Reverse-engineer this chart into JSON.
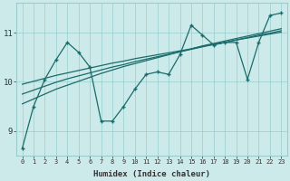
{
  "xlabel": "Humidex (Indice chaleur)",
  "x_values": [
    0,
    1,
    2,
    3,
    4,
    5,
    6,
    7,
    8,
    9,
    10,
    11,
    12,
    13,
    14,
    15,
    16,
    17,
    18,
    19,
    20,
    21,
    22,
    23
  ],
  "line1_y": [
    8.65,
    9.5,
    10.05,
    10.45,
    10.8,
    10.6,
    10.3,
    9.2,
    9.2,
    9.5,
    9.85,
    10.15,
    10.2,
    10.15,
    10.55,
    11.15,
    10.95,
    10.75,
    10.8,
    10.8,
    10.05,
    10.8,
    11.35,
    11.4
  ],
  "trend1": [
    9.55,
    9.65,
    9.75,
    9.85,
    9.93,
    10.01,
    10.09,
    10.17,
    10.24,
    10.31,
    10.37,
    10.43,
    10.49,
    10.55,
    10.61,
    10.67,
    10.73,
    10.78,
    10.83,
    10.88,
    10.93,
    10.98,
    11.03,
    11.08
  ],
  "trend2": [
    9.75,
    9.83,
    9.91,
    9.99,
    10.06,
    10.12,
    10.18,
    10.24,
    10.3,
    10.35,
    10.41,
    10.46,
    10.51,
    10.56,
    10.61,
    10.66,
    10.71,
    10.76,
    10.8,
    10.85,
    10.9,
    10.95,
    10.99,
    11.04
  ],
  "trend3": [
    9.95,
    10.01,
    10.07,
    10.13,
    10.18,
    10.23,
    10.28,
    10.33,
    10.38,
    10.42,
    10.47,
    10.51,
    10.55,
    10.59,
    10.63,
    10.67,
    10.72,
    10.76,
    10.8,
    10.85,
    10.89,
    10.93,
    10.97,
    11.01
  ],
  "ylim": [
    8.5,
    11.6
  ],
  "yticks": [
    9,
    10,
    11
  ],
  "xlim": [
    -0.5,
    23.5
  ],
  "bg_color": "#cceaea",
  "grid_color": "#99cccc",
  "line_color": "#1a6b6b",
  "font_color": "#333333"
}
